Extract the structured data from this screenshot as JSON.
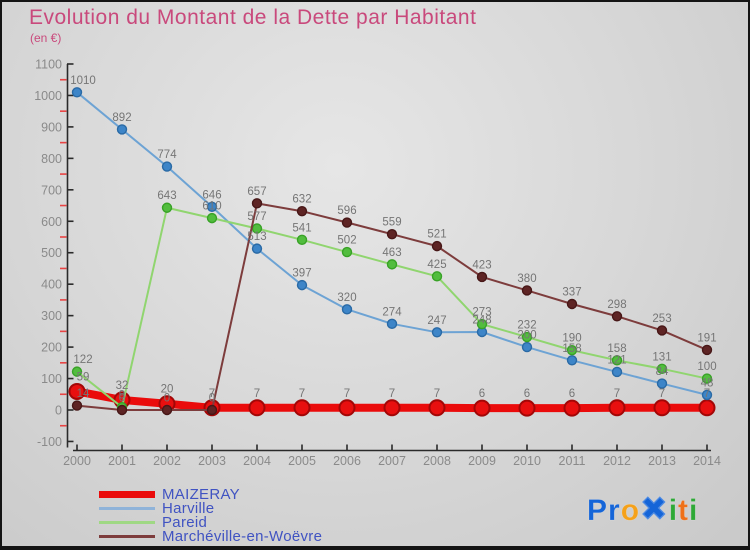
{
  "title": {
    "text": "Evolution du Montant de la Dette par Habitant",
    "color": "#c9497c"
  },
  "subtitle": {
    "text": "(en €)"
  },
  "chart_data": {
    "type": "line",
    "title": "Evolution du Montant de la Dette par Habitant",
    "subtitle": "(en €)",
    "x": [
      2000,
      2001,
      2002,
      2003,
      2004,
      2005,
      2006,
      2007,
      2008,
      2009,
      2010,
      2011,
      2012,
      2013,
      2014
    ],
    "ylim": [
      -100,
      1100
    ],
    "ytick_step": 100,
    "grid": false,
    "legend_position": "bottom-left",
    "axis_color": "#2a2a2a",
    "tick_label_color": "#8a8a8a",
    "minor_tick_color": "#e94444",
    "value_label_color": "#757575",
    "series": [
      {
        "name": "MAIZERAY",
        "values": [
          59,
          32,
          20,
          7,
          7,
          7,
          7,
          7,
          7,
          6,
          6,
          6,
          7,
          7,
          7
        ],
        "line_color": "#ea0b0b",
        "dot_fill": "#e80f0f",
        "dot_stroke": "#a30707",
        "line_width": 8,
        "dot_r": 7.5,
        "thick": true
      },
      {
        "name": "Harville",
        "values": [
          1010,
          892,
          774,
          646,
          513,
          397,
          320,
          274,
          247,
          248,
          200,
          158,
          121,
          84,
          48
        ],
        "line_color": "#6da3d4",
        "dot_fill": "#3d85c8",
        "dot_stroke": "#2a6aa5",
        "line_width": 2,
        "dot_r": 4.5,
        "thick": false
      },
      {
        "name": "Pareid",
        "values": [
          122,
          9,
          643,
          610,
          577,
          541,
          502,
          463,
          425,
          273,
          232,
          190,
          158,
          131,
          100
        ],
        "line_color": "#90d56f",
        "dot_fill": "#52bd3e",
        "dot_stroke": "#38a226",
        "line_width": 2,
        "dot_r": 4.5,
        "thick": false
      },
      {
        "name": "Marchéville-en-Woëvre",
        "values": [
          14,
          0,
          0,
          0,
          657,
          632,
          596,
          559,
          521,
          423,
          380,
          337,
          298,
          253,
          191
        ],
        "line_color": "#7d3c3c",
        "dot_fill": "#5e2424",
        "dot_stroke": "#471717",
        "line_width": 2,
        "dot_r": 4.5,
        "thick": false
      }
    ]
  },
  "legend": {
    "text_color": "#4053c2",
    "items": [
      {
        "label": "MAIZERAY",
        "color": "#ea0b0b",
        "swatch_height": 7
      },
      {
        "label": "Harville",
        "color": "#8fb3d9",
        "swatch_height": 3
      },
      {
        "label": "Pareid",
        "color": "#9fd884",
        "swatch_height": 3
      },
      {
        "label": "Marchéville-en-Woëvre",
        "color": "#7d3c3c",
        "swatch_height": 3
      }
    ]
  },
  "logo": {
    "name": "Proxiti",
    "letters": [
      {
        "ch": "P",
        "color": "#1565d8",
        "big": false
      },
      {
        "ch": "r",
        "color": "#1565d8",
        "big": false
      },
      {
        "ch": "o",
        "color": "#f5a11a",
        "big": false
      },
      {
        "ch": "✖",
        "color": "#1565d8",
        "big": true
      },
      {
        "ch": "i",
        "color": "#2ea836",
        "big": false
      },
      {
        "ch": "t",
        "color": "#ef7018",
        "big": false
      },
      {
        "ch": "i",
        "color": "#2ea836",
        "big": false
      }
    ]
  }
}
